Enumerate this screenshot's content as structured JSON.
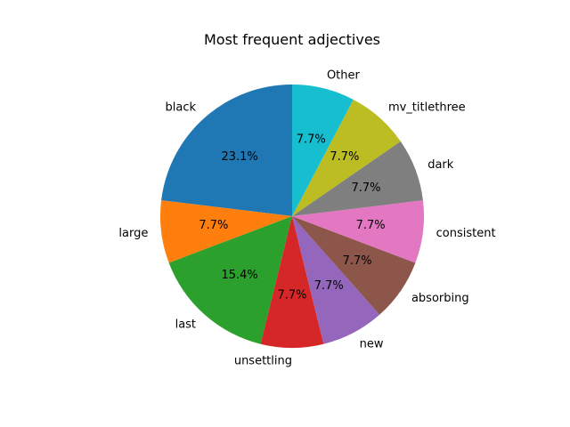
{
  "chart_data": {
    "type": "pie",
    "title": "Most frequent adjectives",
    "start_angle_deg": 90,
    "direction": "counterclockwise",
    "slices": [
      {
        "label": "black",
        "value": 23.1,
        "pct_label": "23.1%",
        "color": "#1f77b4"
      },
      {
        "label": "large",
        "value": 7.7,
        "pct_label": "7.7%",
        "color": "#ff7f0e"
      },
      {
        "label": "last",
        "value": 15.4,
        "pct_label": "15.4%",
        "color": "#2ca02c"
      },
      {
        "label": "unsettling",
        "value": 7.7,
        "pct_label": "7.7%",
        "color": "#d62728"
      },
      {
        "label": "new",
        "value": 7.7,
        "pct_label": "7.7%",
        "color": "#9467bd"
      },
      {
        "label": "absorbing",
        "value": 7.7,
        "pct_label": "7.7%",
        "color": "#8c564b"
      },
      {
        "label": "consistent",
        "value": 7.7,
        "pct_label": "7.7%",
        "color": "#e377c2"
      },
      {
        "label": "dark",
        "value": 7.7,
        "pct_label": "7.7%",
        "color": "#7f7f7f"
      },
      {
        "label": "mv_titlethree",
        "value": 7.7,
        "pct_label": "7.7%",
        "color": "#bcbd22"
      },
      {
        "label": "Other",
        "value": 7.7,
        "pct_label": "7.7%",
        "color": "#17becf"
      }
    ]
  }
}
